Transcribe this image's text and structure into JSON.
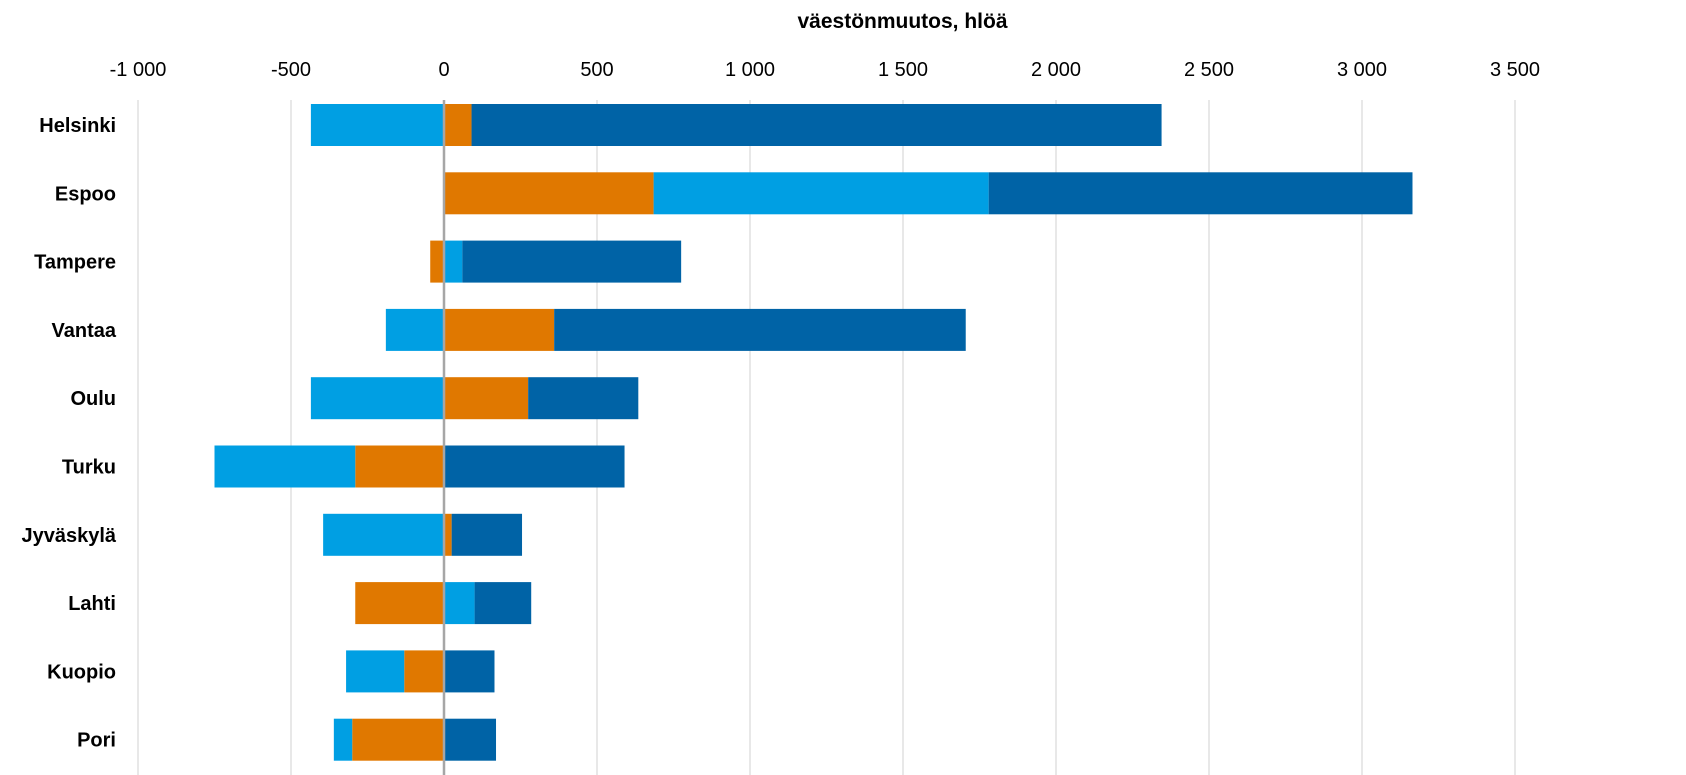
{
  "chart_data": {
    "type": "bar",
    "orientation": "horizontal",
    "stacked": true,
    "title": "",
    "xlabel": "väestönmuutos, hlöä",
    "ylabel": "",
    "xlim": [
      -1000,
      3500
    ],
    "x_ticks": [
      -1000,
      -500,
      0,
      500,
      1000,
      1500,
      2000,
      2500,
      3000,
      3500
    ],
    "x_tick_labels": [
      "-1 000",
      "-500",
      "0",
      "500",
      "1 000",
      "1 500",
      "2 000",
      "2 500",
      "3 000",
      "3 500"
    ],
    "x_axis_position": "top",
    "grid": true,
    "legend": "none",
    "categories": [
      "Helsinki",
      "Espoo",
      "Tampere",
      "Vantaa",
      "Oulu",
      "Turku",
      "Jyväskylä",
      "Lahti",
      "Kuopio",
      "Pori"
    ],
    "series": [
      {
        "color": "#E07800",
        "values": [
          90,
          685,
          -45,
          360,
          275,
          -290,
          25,
          -290,
          -130,
          -300
        ]
      },
      {
        "color": "#009FE3",
        "values": [
          -435,
          1095,
          60,
          -190,
          -435,
          -460,
          -395,
          100,
          -190,
          -60
        ]
      },
      {
        "color": "#0063A6",
        "values": [
          2255,
          1385,
          715,
          1345,
          360,
          590,
          230,
          185,
          165,
          170
        ]
      }
    ]
  }
}
